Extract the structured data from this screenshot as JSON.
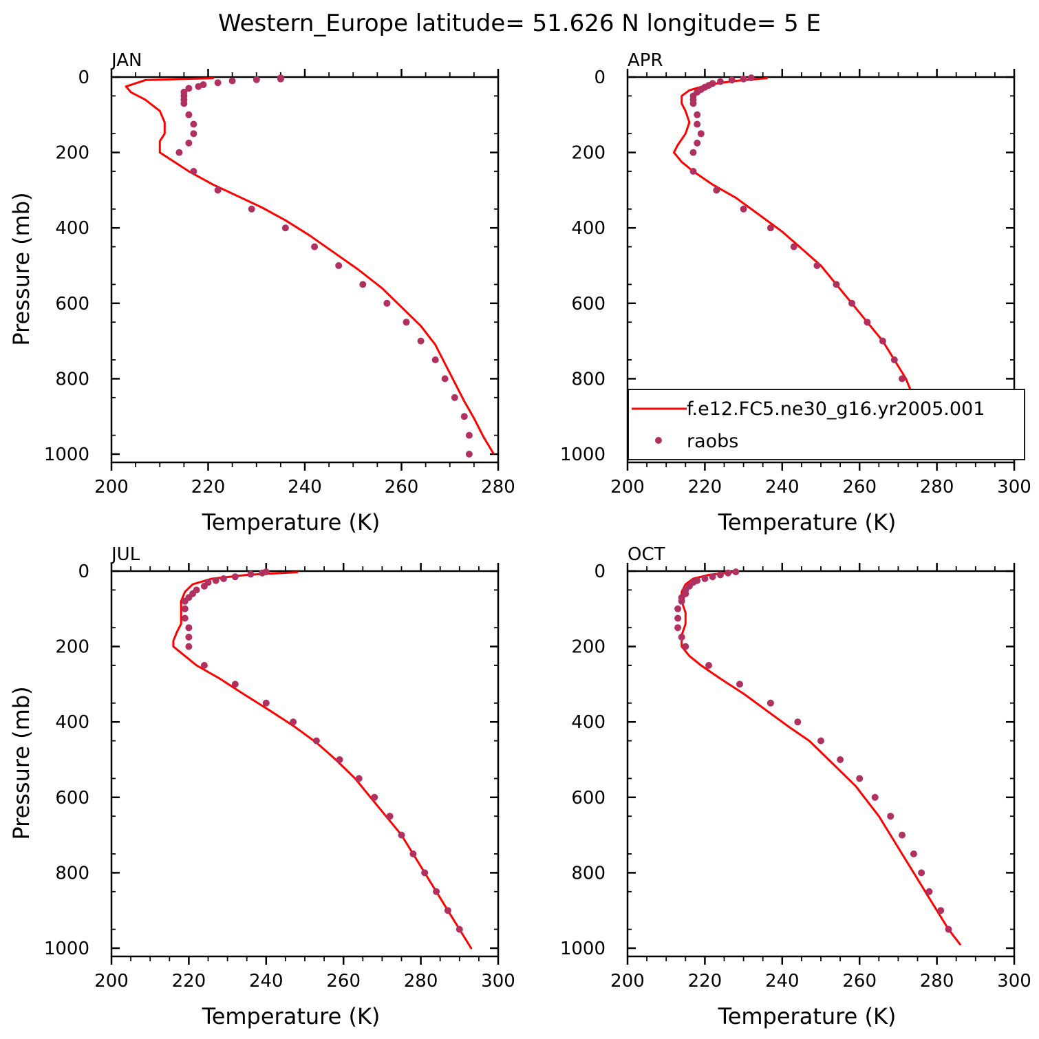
{
  "title": "Western_Europe  latitude= 51.626 N longitude= 5 E",
  "colors": {
    "model": "#ff0000",
    "obs": "#b03060"
  },
  "legend": {
    "panel": 1,
    "entries": [
      {
        "label": "f.e12.FC5.ne30_g16.yr2005.001",
        "marker": "line"
      },
      {
        "label": "raobs",
        "marker": "dot"
      }
    ]
  },
  "chart_data": [
    {
      "type": "line",
      "panel_label": "JAN",
      "xlabel": "Temperature (K)",
      "ylabel": "Pressure (mb)",
      "xlim": [
        200,
        280
      ],
      "ylim": [
        1000,
        0
      ],
      "xticks": [
        200,
        220,
        240,
        260,
        280
      ],
      "yticks": [
        0,
        200,
        400,
        600,
        800,
        1000
      ],
      "series": [
        {
          "name": "f.e12.FC5.ne30_g16.yr2005.001",
          "kind": "line",
          "points": [
            [
              221,
              3
            ],
            [
              207,
              8
            ],
            [
              203,
              25
            ],
            [
              204,
              40
            ],
            [
              207,
              60
            ],
            [
              210,
              90
            ],
            [
              211,
              120
            ],
            [
              211,
              150
            ],
            [
              210,
              170
            ],
            [
              210,
              200
            ],
            [
              213,
              225
            ],
            [
              216,
              250
            ],
            [
              221,
              285
            ],
            [
              226,
              315
            ],
            [
              231,
              345
            ],
            [
              236,
              380
            ],
            [
              241,
              420
            ],
            [
              246,
              465
            ],
            [
              251,
              510
            ],
            [
              256,
              560
            ],
            [
              260,
              610
            ],
            [
              264,
              660
            ],
            [
              267,
              710
            ],
            [
              269,
              760
            ],
            [
              271,
              810
            ],
            [
              273,
              860
            ],
            [
              275,
              905
            ],
            [
              277,
              955
            ],
            [
              279,
              998
            ]
          ]
        },
        {
          "name": "raobs",
          "kind": "scatter",
          "points": [
            [
              235,
              2
            ],
            [
              235,
              5
            ],
            [
              230,
              7
            ],
            [
              225,
              10
            ],
            [
              222,
              15
            ],
            [
              219,
              20
            ],
            [
              218,
              25
            ],
            [
              216,
              30
            ],
            [
              215,
              40
            ],
            [
              215,
              50
            ],
            [
              215,
              60
            ],
            [
              215,
              70
            ],
            [
              216,
              100
            ],
            [
              217,
              125
            ],
            [
              217,
              150
            ],
            [
              216,
              175
            ],
            [
              214,
              200
            ],
            [
              217,
              250
            ],
            [
              222,
              300
            ],
            [
              229,
              350
            ],
            [
              236,
              400
            ],
            [
              242,
              450
            ],
            [
              247,
              500
            ],
            [
              252,
              550
            ],
            [
              257,
              600
            ],
            [
              261,
              650
            ],
            [
              264,
              700
            ],
            [
              267,
              750
            ],
            [
              269,
              800
            ],
            [
              271,
              850
            ],
            [
              273,
              900
            ],
            [
              274,
              950
            ],
            [
              274,
              1000
            ]
          ]
        }
      ]
    },
    {
      "type": "line",
      "panel_label": "APR",
      "xlabel": "Temperature (K)",
      "ylabel": "",
      "xlim": [
        200,
        300
      ],
      "ylim": [
        1000,
        0
      ],
      "xticks": [
        200,
        220,
        240,
        260,
        280,
        300
      ],
      "yticks": [
        0,
        200,
        400,
        600,
        800,
        1000
      ],
      "series": [
        {
          "name": "f.e12.FC5.ne30_g16.yr2005.001",
          "kind": "line",
          "points": [
            [
              236,
              3
            ],
            [
              228,
              10
            ],
            [
              221,
              20
            ],
            [
              216,
              35
            ],
            [
              214,
              50
            ],
            [
              214,
              70
            ],
            [
              215,
              90
            ],
            [
              216,
              120
            ],
            [
              215,
              150
            ],
            [
              213,
              180
            ],
            [
              212,
              200
            ],
            [
              214,
              225
            ],
            [
              217,
              250
            ],
            [
              222,
              285
            ],
            [
              228,
              320
            ],
            [
              234,
              365
            ],
            [
              240,
              410
            ],
            [
              245,
              455
            ],
            [
              250,
              500
            ],
            [
              254,
              550
            ],
            [
              258,
              600
            ],
            [
              262,
              650
            ],
            [
              266,
              700
            ],
            [
              269,
              750
            ],
            [
              272,
              800
            ],
            [
              274,
              850
            ],
            [
              277,
              900
            ],
            [
              280,
              950
            ],
            [
              283,
              990
            ]
          ]
        },
        {
          "name": "raobs",
          "kind": "scatter",
          "points": [
            [
              232,
              2
            ],
            [
              230,
              5
            ],
            [
              227,
              8
            ],
            [
              224,
              12
            ],
            [
              222,
              17
            ],
            [
              221,
              22
            ],
            [
              220,
              27
            ],
            [
              219,
              33
            ],
            [
              218,
              40
            ],
            [
              217,
              50
            ],
            [
              217,
              60
            ],
            [
              217,
              70
            ],
            [
              218,
              100
            ],
            [
              218,
              125
            ],
            [
              219,
              150
            ],
            [
              218,
              175
            ],
            [
              217,
              200
            ],
            [
              217,
              250
            ],
            [
              223,
              300
            ],
            [
              230,
              350
            ],
            [
              237,
              400
            ],
            [
              243,
              450
            ],
            [
              249,
              500
            ],
            [
              254,
              550
            ],
            [
              258,
              600
            ],
            [
              262,
              650
            ],
            [
              266,
              700
            ],
            [
              269,
              750
            ],
            [
              271,
              800
            ],
            [
              274,
              850
            ],
            [
              277,
              900
            ],
            [
              281,
              950
            ]
          ]
        }
      ]
    },
    {
      "type": "line",
      "panel_label": "JUL",
      "xlabel": "Temperature (K)",
      "ylabel": "Pressure (mb)",
      "xlim": [
        200,
        300
      ],
      "ylim": [
        1000,
        0
      ],
      "xticks": [
        200,
        220,
        240,
        260,
        280,
        300
      ],
      "yticks": [
        0,
        200,
        400,
        600,
        800,
        1000
      ],
      "series": [
        {
          "name": "f.e12.FC5.ne30_g16.yr2005.001",
          "kind": "line",
          "points": [
            [
              248,
              3
            ],
            [
              235,
              10
            ],
            [
              226,
              20
            ],
            [
              221,
              35
            ],
            [
              219,
              55
            ],
            [
              218,
              80
            ],
            [
              218,
              110
            ],
            [
              218,
              140
            ],
            [
              217,
              160
            ],
            [
              216,
              185
            ],
            [
              216,
              200
            ],
            [
              219,
              225
            ],
            [
              222,
              250
            ],
            [
              228,
              285
            ],
            [
              234,
              325
            ],
            [
              241,
              370
            ],
            [
              247,
              410
            ],
            [
              253,
              455
            ],
            [
              258,
              500
            ],
            [
              263,
              550
            ],
            [
              267,
              600
            ],
            [
              271,
              650
            ],
            [
              275,
              700
            ],
            [
              278,
              750
            ],
            [
              281,
              800
            ],
            [
              284,
              850
            ],
            [
              287,
              900
            ],
            [
              290,
              950
            ],
            [
              293,
              1000
            ]
          ]
        },
        {
          "name": "raobs",
          "kind": "scatter",
          "points": [
            [
              240,
              2
            ],
            [
              239,
              5
            ],
            [
              236,
              8
            ],
            [
              232,
              15
            ],
            [
              229,
              20
            ],
            [
              227,
              25
            ],
            [
              225,
              30
            ],
            [
              224,
              40
            ],
            [
              222,
              50
            ],
            [
              221,
              60
            ],
            [
              220,
              70
            ],
            [
              219,
              80
            ],
            [
              219,
              100
            ],
            [
              219,
              125
            ],
            [
              220,
              150
            ],
            [
              220,
              175
            ],
            [
              220,
              200
            ],
            [
              224,
              250
            ],
            [
              232,
              300
            ],
            [
              240,
              350
            ],
            [
              247,
              400
            ],
            [
              253,
              450
            ],
            [
              259,
              500
            ],
            [
              264,
              550
            ],
            [
              268,
              600
            ],
            [
              272,
              650
            ],
            [
              275,
              700
            ],
            [
              278,
              750
            ],
            [
              281,
              800
            ],
            [
              284,
              850
            ],
            [
              287,
              900
            ],
            [
              290,
              950
            ]
          ]
        }
      ]
    },
    {
      "type": "line",
      "panel_label": "OCT",
      "xlabel": "Temperature (K)",
      "ylabel": "",
      "xlim": [
        200,
        300
      ],
      "ylim": [
        1000,
        0
      ],
      "xticks": [
        200,
        220,
        240,
        260,
        280,
        300
      ],
      "yticks": [
        0,
        200,
        400,
        600,
        800,
        1000
      ],
      "series": [
        {
          "name": "f.e12.FC5.ne30_g16.yr2005.001",
          "kind": "line",
          "points": [
            [
              227,
              3
            ],
            [
              221,
              10
            ],
            [
              217,
              20
            ],
            [
              215,
              35
            ],
            [
              214,
              55
            ],
            [
              214,
              80
            ],
            [
              215,
              110
            ],
            [
              215,
              140
            ],
            [
              214,
              170
            ],
            [
              214,
              200
            ],
            [
              216,
              225
            ],
            [
              219,
              250
            ],
            [
              224,
              285
            ],
            [
              230,
              325
            ],
            [
              236,
              370
            ],
            [
              242,
              415
            ],
            [
              247,
              450
            ],
            [
              251,
              490
            ],
            [
              255,
              530
            ],
            [
              259,
              570
            ],
            [
              262,
              610
            ],
            [
              265,
              650
            ],
            [
              268,
              700
            ],
            [
              271,
              750
            ],
            [
              274,
              800
            ],
            [
              277,
              850
            ],
            [
              280,
              900
            ],
            [
              283,
              950
            ],
            [
              286,
              990
            ]
          ]
        },
        {
          "name": "raobs",
          "kind": "scatter",
          "points": [
            [
              228,
              2
            ],
            [
              226,
              5
            ],
            [
              224,
              10
            ],
            [
              222,
              15
            ],
            [
              220,
              20
            ],
            [
              218,
              25
            ],
            [
              217,
              30
            ],
            [
              216,
              40
            ],
            [
              215,
              50
            ],
            [
              215,
              60
            ],
            [
              214,
              70
            ],
            [
              214,
              80
            ],
            [
              213,
              100
            ],
            [
              213,
              125
            ],
            [
              213,
              150
            ],
            [
              214,
              175
            ],
            [
              215,
              200
            ],
            [
              221,
              250
            ],
            [
              229,
              300
            ],
            [
              237,
              350
            ],
            [
              244,
              400
            ],
            [
              250,
              450
            ],
            [
              255,
              500
            ],
            [
              260,
              550
            ],
            [
              264,
              600
            ],
            [
              268,
              650
            ],
            [
              271,
              700
            ],
            [
              274,
              750
            ],
            [
              276,
              800
            ],
            [
              278,
              850
            ],
            [
              281,
              900
            ],
            [
              283,
              950
            ]
          ]
        }
      ]
    }
  ]
}
